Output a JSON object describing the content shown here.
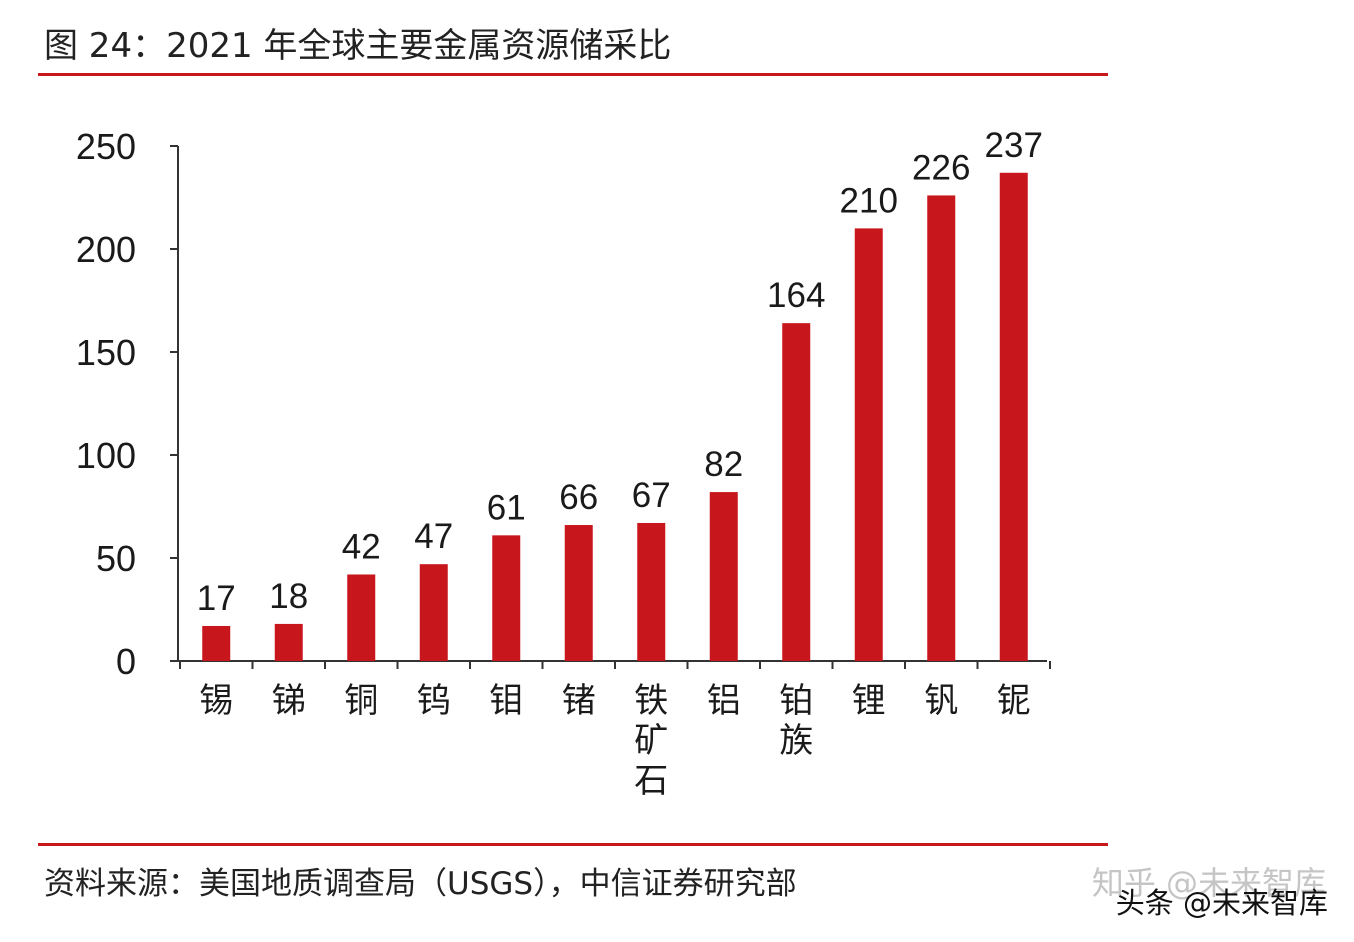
{
  "figure": {
    "title": "图 24：2021 年全球主要金属资源储采比",
    "source": "资料来源：美国地质调查局（USGS），中信证券研究部"
  },
  "watermarks": {
    "zhihu": "知乎 @未来智库",
    "toutiao": "头条 @未来智库"
  },
  "colors": {
    "bar": "#c8161d",
    "rule": "#c8161d",
    "axis": "#333333"
  },
  "chart_data": {
    "type": "bar",
    "categories": [
      "锡",
      "锑",
      "铜",
      "钨",
      "钼",
      "锗",
      "铁矿石",
      "铝",
      "铂族",
      "锂",
      "钒",
      "铌"
    ],
    "values": [
      17,
      18,
      42,
      47,
      61,
      66,
      67,
      82,
      164,
      210,
      226,
      237
    ],
    "data_labels": [
      "17",
      "18",
      "42",
      "47",
      "61",
      "66",
      "67",
      "82",
      "164",
      "210",
      "226",
      "237"
    ],
    "yticks": [
      0,
      50,
      100,
      150,
      200,
      250
    ],
    "ylim": [
      0,
      250
    ],
    "title": "图 24：2021 年全球主要金属资源储采比",
    "xlabel": "",
    "ylabel": "",
    "grid": false,
    "legend": "none"
  }
}
